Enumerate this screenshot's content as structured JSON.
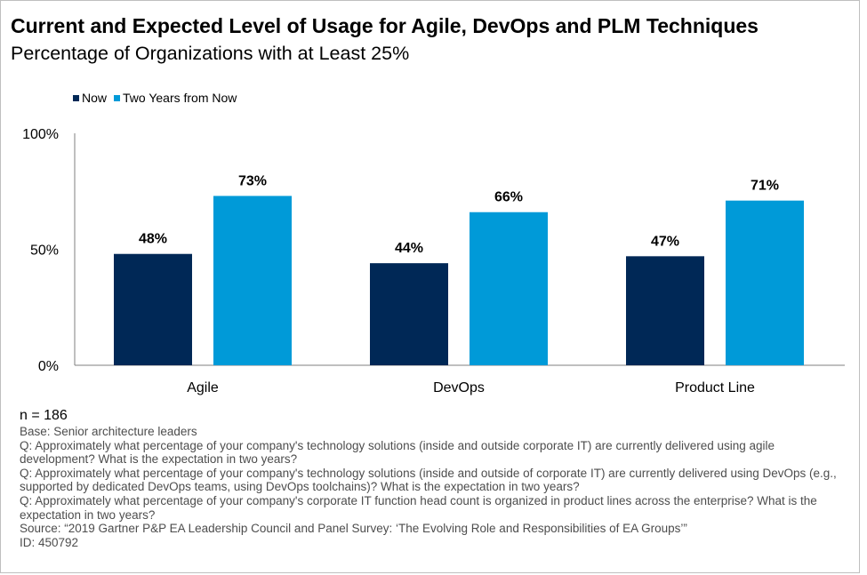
{
  "header": {
    "title": "Current and Expected Level of Usage for Agile, DevOps and PLM Techniques",
    "subtitle": "Percentage of Organizations with at Least 25%"
  },
  "legend": {
    "now": "Now",
    "future": "Two Years from Now"
  },
  "colors": {
    "now": "#002856",
    "future": "#009ad8",
    "axis": "#7f7f7f"
  },
  "chart_data": {
    "type": "bar",
    "title": "Current and Expected Level of Usage for Agile, DevOps and PLM Techniques",
    "subtitle": "Percentage of Organizations with at Least 25%",
    "categories": [
      "Agile",
      "DevOps",
      "Product Line"
    ],
    "series": [
      {
        "name": "Now",
        "values": [
          48,
          44,
          47
        ],
        "labels": [
          "48%",
          "44%",
          "47%"
        ]
      },
      {
        "name": "Two Years from Now",
        "values": [
          73,
          66,
          71
        ],
        "labels": [
          "73%",
          "66%",
          "71%"
        ]
      }
    ],
    "ylim": [
      0,
      100
    ],
    "yticks": [
      0,
      50,
      100
    ],
    "ytick_labels": [
      "0%",
      "50%",
      "100%"
    ],
    "xlabel": "",
    "ylabel": "",
    "legend_position": "top-left",
    "grid": false
  },
  "footnotes": {
    "n": "n = 186",
    "lines": [
      "Base: Senior architecture leaders",
      "Q: Approximately what percentage of your company's technology solutions (inside and outside corporate IT) are currently delivered using agile development? What is the expectation in two years?",
      "Q: Approximately what percentage of your company's technology solutions (inside and outside of corporate IT) are currently delivered using DevOps (e.g., supported by dedicated DevOps teams, using DevOps toolchains)? What is the expectation in two years?",
      "Q: Approximately what percentage of your company's corporate IT function head count is organized in product lines across the enterprise? What is the expectation in two years?",
      "Source: “2019 Gartner P&P EA Leadership Council and Panel Survey: ‘The Evolving Role and Responsibilities of EA Groups’”",
      "ID: 450792"
    ]
  }
}
